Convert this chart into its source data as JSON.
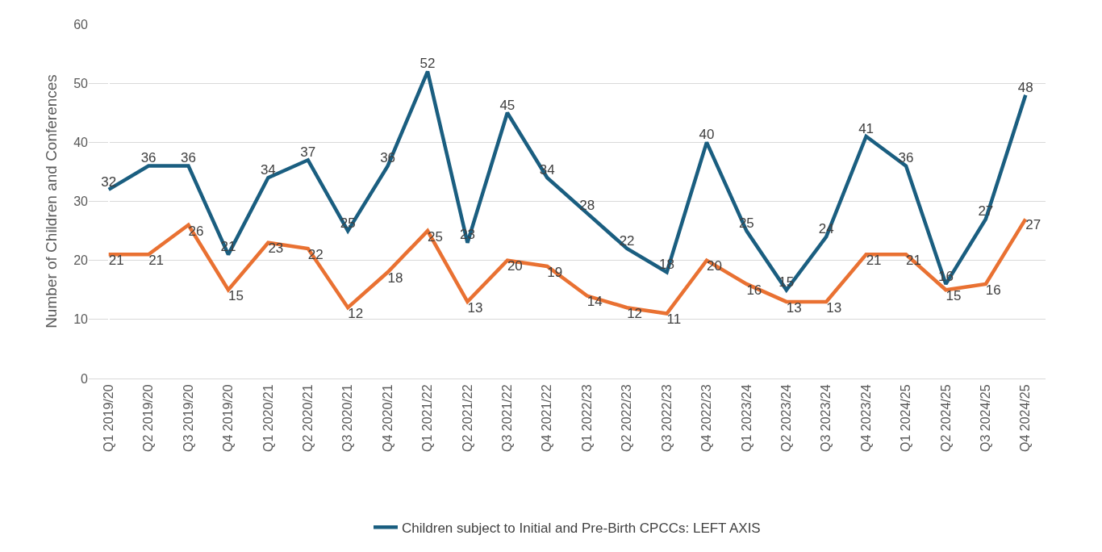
{
  "chart_data": {
    "type": "line",
    "ylabel": "Number of Children and Conferences",
    "categories": [
      "Q1 2019/20",
      "Q2 2019/20",
      "Q3 2019/20",
      "Q4 2019/20",
      "Q1 2020/21",
      "Q2 2020/21",
      "Q3 2020/21",
      "Q4 2020/21",
      "Q1 2021/22",
      "Q2 2021/22",
      "Q3 2021/22",
      "Q4 2021/22",
      "Q1 2022/23",
      "Q2 2022/23",
      "Q3 2022/23",
      "Q4 2022/23",
      "Q1 2023/24",
      "Q2 2023/24",
      "Q3 2023/24",
      "Q4 2023/24",
      "Q1 2024/25",
      "Q2 2024/25",
      "Q3 2024/25",
      "Q4 2024/25"
    ],
    "series": [
      {
        "name": "Children subject to Initial and Pre-Birth CPCCs: LEFT AXIS",
        "color": "#1a5e80",
        "values": [
          32,
          36,
          36,
          21,
          34,
          37,
          25,
          36,
          52,
          23,
          45,
          34,
          28,
          22,
          18,
          40,
          25,
          15,
          24,
          41,
          36,
          16,
          27,
          48
        ]
      },
      {
        "color": "#e97132",
        "values": [
          21,
          21,
          26,
          15,
          23,
          22,
          12,
          18,
          25,
          13,
          20,
          19,
          14,
          12,
          11,
          20,
          16,
          13,
          13,
          21,
          21,
          15,
          16,
          27
        ]
      }
    ],
    "ylim": [
      0,
      60
    ],
    "yticks": [
      0,
      10,
      20,
      30,
      40,
      50,
      60
    ],
    "grid": "y",
    "legend": "bottom",
    "data_labels": true,
    "marker": "none",
    "line_style": "solid"
  }
}
